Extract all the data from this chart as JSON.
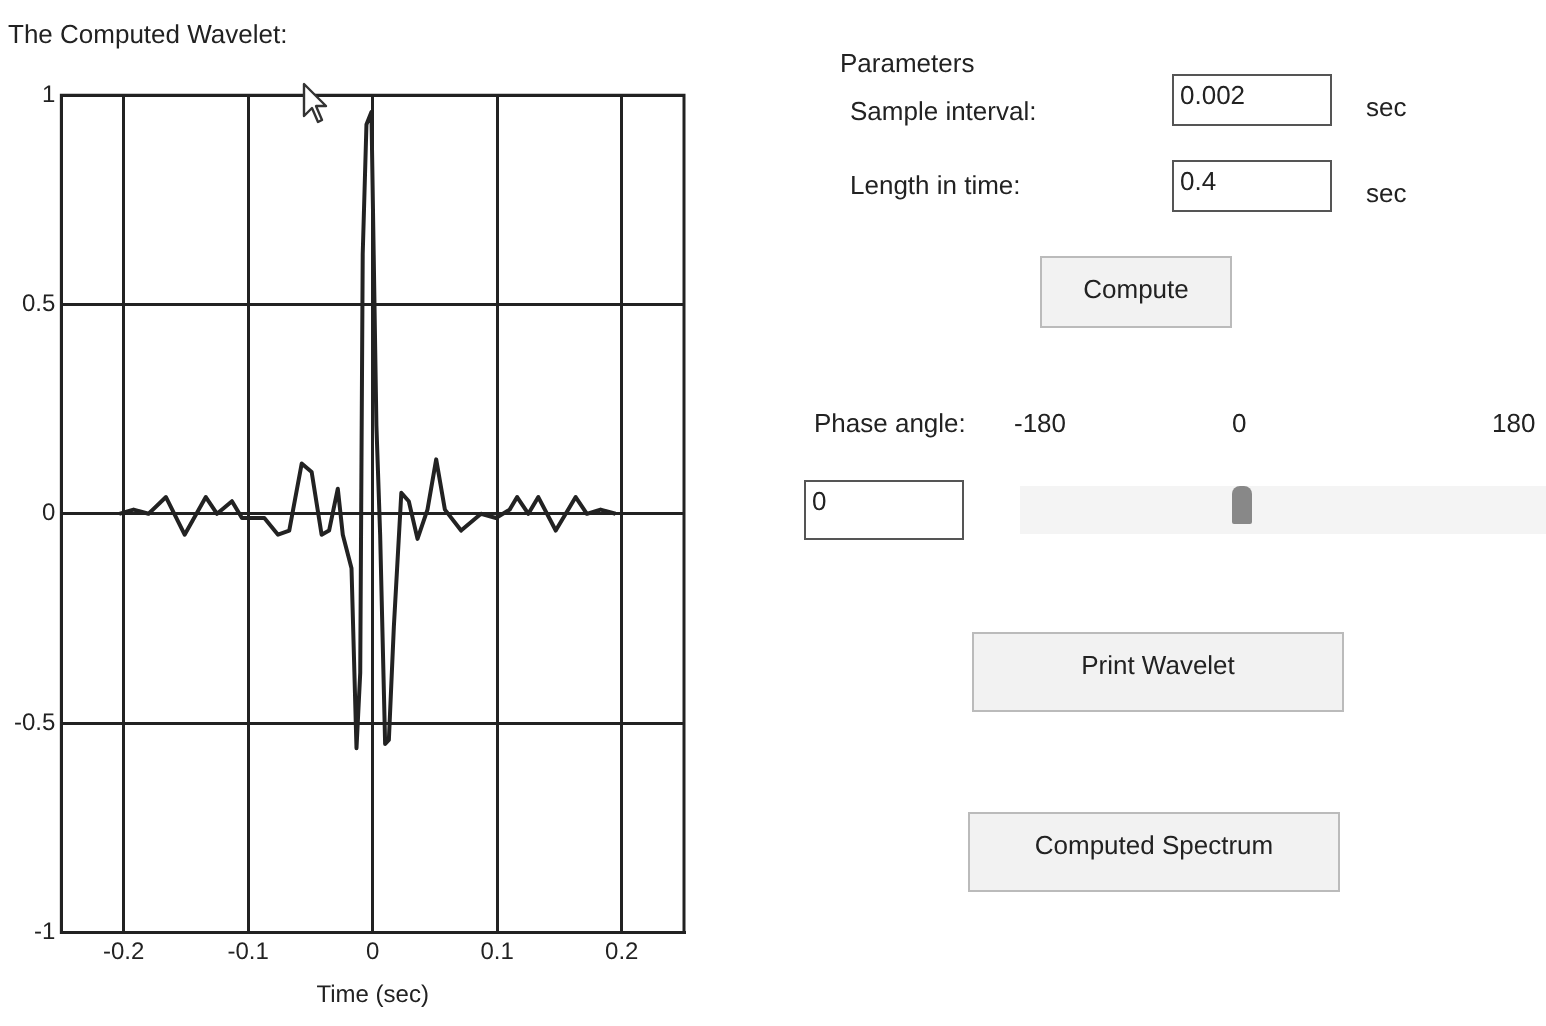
{
  "chart_data": [
    {
      "type": "line",
      "title": "The Computed Wavelet:",
      "xlabel": "Time (sec)",
      "x": [
        -0.2035,
        -0.192,
        -0.18,
        -0.166,
        -0.151,
        -0.134,
        -0.125,
        -0.113,
        -0.105,
        -0.087,
        -0.076,
        -0.067,
        -0.057,
        -0.049,
        -0.041,
        -0.035,
        -0.028,
        -0.024,
        -0.017,
        -0.013,
        -0.01,
        -0.008,
        -0.005,
        -0.001,
        0.003,
        0.006,
        0.01,
        0.013,
        0.017,
        0.023,
        0.029,
        0.036,
        0.044,
        0.051,
        0.058,
        0.071,
        0.087,
        0.099,
        0.11,
        0.116,
        0.125,
        0.133,
        0.147,
        0.163,
        0.172,
        0.183,
        0.195
      ],
      "series": [
        {
          "color": "#222222",
          "values": [
            0,
            0.01,
            0,
            0.04,
            -0.05,
            0.04,
            0,
            0.03,
            -0.01,
            -0.01,
            -0.05,
            -0.04,
            0.12,
            0.1,
            -0.05,
            -0.04,
            0.06,
            -0.05,
            -0.13,
            -0.56,
            -0.38,
            0.62,
            0.93,
            0.96,
            0.21,
            -0.05,
            -0.55,
            -0.54,
            -0.27,
            0.05,
            0.03,
            -0.06,
            0.01,
            0.13,
            0.01,
            -0.04,
            0,
            -0.01,
            0.01,
            0.04,
            0,
            0.04,
            -0.04,
            0.04,
            0,
            0.01,
            0
          ]
        }
      ],
      "xlim": [
        -0.25,
        0.25
      ],
      "xticks": [
        -0.2,
        -0.1,
        0,
        0.1,
        0.2
      ],
      "ylim": [
        -1,
        1
      ],
      "yticks": [
        -1,
        -0.5,
        0,
        0.5,
        1
      ],
      "grid": true,
      "marker": "none",
      "line_style": "solid"
    },
    {
      "type": "other",
      "title": "Parameters",
      "annotations": [
        "Sample interval:",
        "0.002",
        "sec",
        "Length in time:",
        "0.4",
        "sec",
        "Compute",
        "Phase angle:",
        "-180",
        "0",
        "180",
        "0",
        "Print Wavelet",
        "Computed Spectrum"
      ]
    }
  ]
}
